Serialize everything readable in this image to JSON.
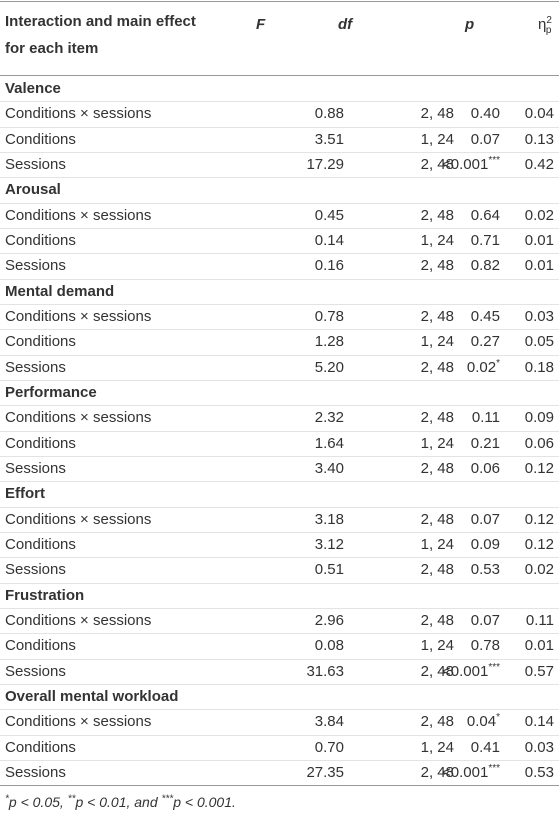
{
  "header": {
    "columns": [
      "Interaction and main effect for each item",
      "F",
      "df",
      "p",
      {
        "symbol": "η",
        "sup": "2",
        "sub": "p"
      }
    ]
  },
  "groups": [
    {
      "name": "Valence",
      "rows": [
        [
          "Conditions × sessions",
          "0.88",
          "2, 48",
          "0.40",
          "0.04"
        ],
        [
          "Conditions",
          "3.51",
          "1, 24",
          "0.07",
          "0.13"
        ],
        [
          "Sessions",
          "17.29",
          "2, 48",
          {
            "text": "<0.001",
            "sup": "***"
          },
          "0.42"
        ]
      ]
    },
    {
      "name": "Arousal",
      "rows": [
        [
          "Conditions × sessions",
          "0.45",
          "2, 48",
          "0.64",
          "0.02"
        ],
        [
          "Conditions",
          "0.14",
          "1, 24",
          "0.71",
          "0.01"
        ],
        [
          "Sessions",
          "0.16",
          "2, 48",
          "0.82",
          "0.01"
        ]
      ]
    },
    {
      "name": "Mental demand",
      "rows": [
        [
          "Conditions × sessions",
          "0.78",
          "2, 48",
          "0.45",
          "0.03"
        ],
        [
          "Conditions",
          "1.28",
          "1, 24",
          "0.27",
          "0.05"
        ],
        [
          "Sessions",
          "5.20",
          "2, 48",
          {
            "text": "0.02",
            "sup": "*"
          },
          "0.18"
        ]
      ]
    },
    {
      "name": "Performance",
      "rows": [
        [
          "Conditions × sessions",
          "2.32",
          "2, 48",
          "0.11",
          "0.09"
        ],
        [
          "Conditions",
          "1.64",
          "1, 24",
          "0.21",
          "0.06"
        ],
        [
          "Sessions",
          "3.40",
          "2, 48",
          "0.06",
          "0.12"
        ]
      ]
    },
    {
      "name": "Effort",
      "rows": [
        [
          "Conditions × sessions",
          "3.18",
          "2, 48",
          "0.07",
          "0.12"
        ],
        [
          "Conditions",
          "3.12",
          "1, 24",
          "0.09",
          "0.12"
        ],
        [
          "Sessions",
          "0.51",
          "2, 48",
          "0.53",
          "0.02"
        ]
      ]
    },
    {
      "name": "Frustration",
      "rows": [
        [
          "Conditions × sessions",
          "2.96",
          "2, 48",
          "0.07",
          "0.11"
        ],
        [
          "Conditions",
          "0.08",
          "1, 24",
          "0.78",
          "0.01"
        ],
        [
          "Sessions",
          "31.63",
          "2, 48",
          {
            "text": "<0.001",
            "sup": "***"
          },
          "0.57"
        ]
      ]
    },
    {
      "name": "Overall mental workload",
      "rows": [
        [
          "Conditions × sessions",
          "3.84",
          "2, 48",
          {
            "text": "0.04",
            "sup": "*"
          },
          "0.14"
        ],
        [
          "Conditions",
          "0.70",
          "1, 24",
          "0.41",
          "0.03"
        ],
        [
          "Sessions",
          "27.35",
          "2, 48",
          {
            "text": "<0.001",
            "sup": "***"
          },
          "0.53"
        ]
      ]
    }
  ],
  "footnote": [
    {
      "sup": "*"
    },
    {
      "text": "p < 0.05, "
    },
    {
      "sup": "**"
    },
    {
      "text": "p < 0.01, and "
    },
    {
      "sup": "***"
    },
    {
      "text": "p < 0.001."
    }
  ]
}
